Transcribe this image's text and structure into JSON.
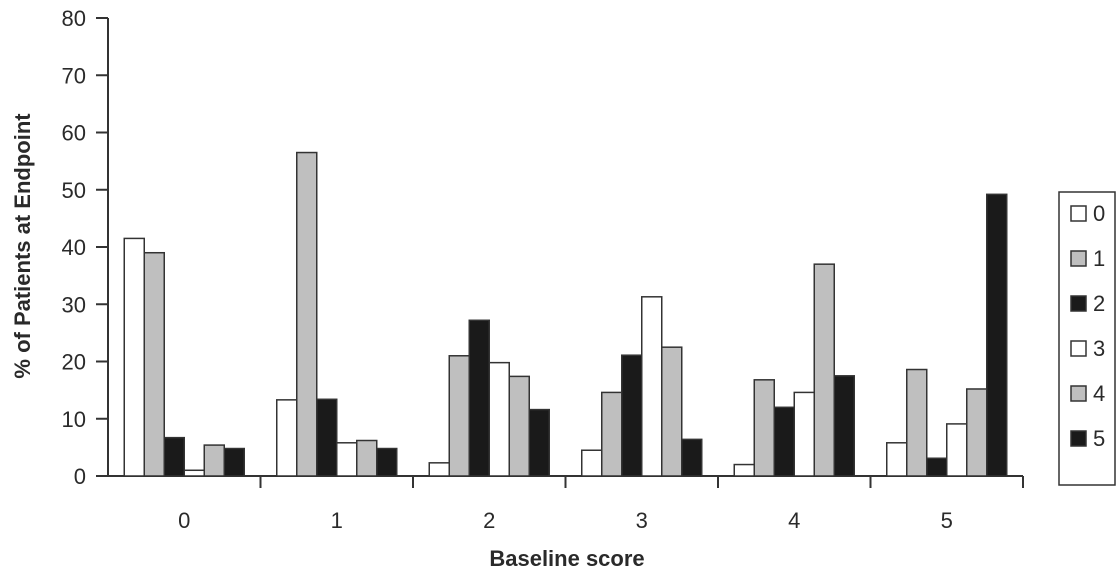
{
  "chart_data": {
    "type": "bar",
    "title": "",
    "xlabel": "Baseline score",
    "ylabel": "% of Patients at Endpoint",
    "categories": [
      "0",
      "1",
      "2",
      "3",
      "4",
      "5"
    ],
    "ylim": [
      0,
      80
    ],
    "yticks": [
      "0",
      "10",
      "20",
      "30",
      "40",
      "50",
      "60",
      "70",
      "80"
    ],
    "grid": false,
    "legend_position": "right",
    "series": [
      {
        "name": "0",
        "color": "#ffffff",
        "values": [
          41.5,
          13.3,
          2.3,
          4.5,
          2.0,
          5.8
        ]
      },
      {
        "name": "1",
        "color": "#bfbfbf",
        "values": [
          39.0,
          56.5,
          21.0,
          14.6,
          16.8,
          18.6
        ]
      },
      {
        "name": "2",
        "color": "#1a1a1a",
        "values": [
          6.7,
          13.4,
          27.2,
          21.1,
          12.0,
          3.1
        ]
      },
      {
        "name": "3",
        "color": "#ffffff",
        "values": [
          1.0,
          5.8,
          19.8,
          31.3,
          14.6,
          9.1
        ]
      },
      {
        "name": "4",
        "color": "#bfbfbf",
        "values": [
          5.4,
          6.2,
          17.4,
          22.5,
          37.0,
          15.2
        ]
      },
      {
        "name": "5",
        "color": "#1a1a1a",
        "values": [
          4.8,
          4.8,
          11.6,
          6.4,
          17.5,
          49.2
        ]
      }
    ]
  }
}
